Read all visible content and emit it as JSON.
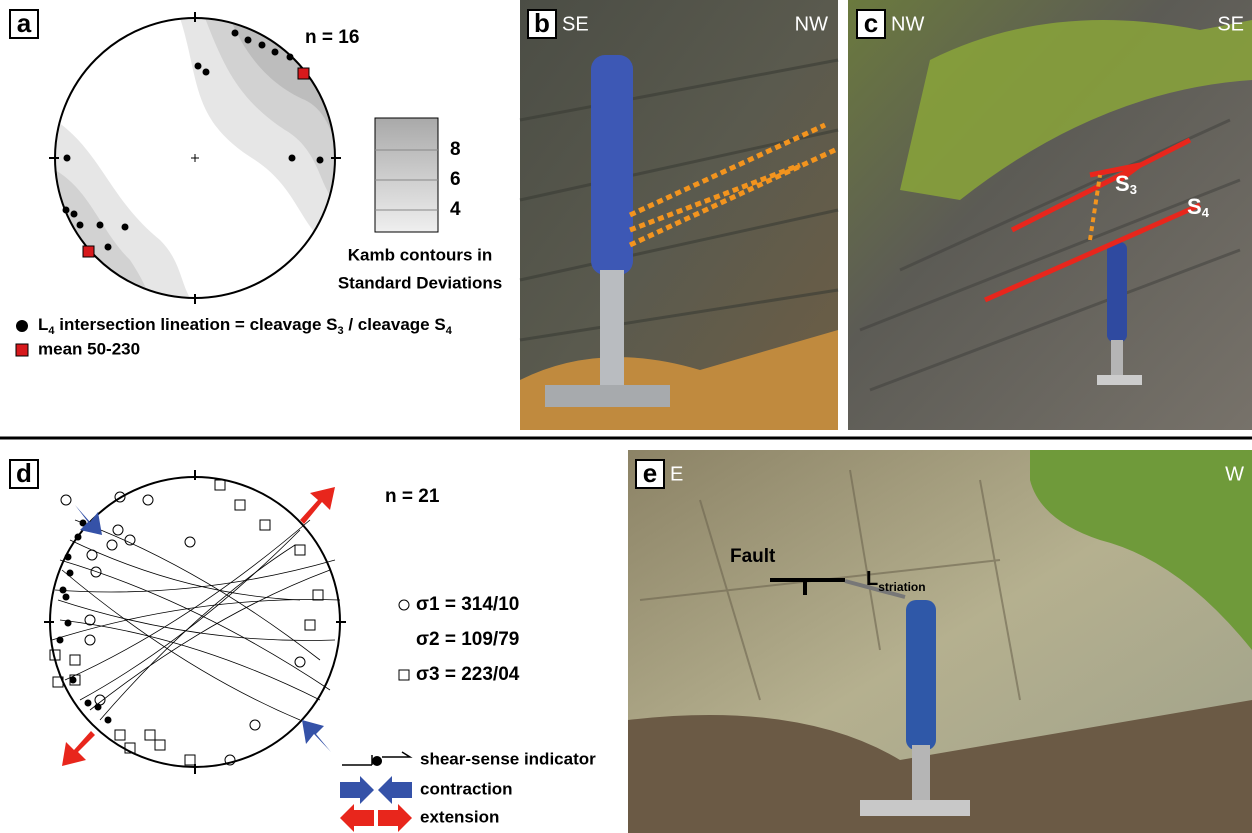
{
  "panel_a": {
    "label": "a",
    "n": "n = 16",
    "contour_labels": [
      8,
      6,
      4
    ],
    "contour_caption": [
      "Kamb contours in",
      "Standard Deviations"
    ],
    "legend_lineation": [
      "L",
      "4",
      " intersection lineation = cleavage S",
      "3",
      " / cleavage S",
      "4"
    ],
    "legend_mean": "mean 50-230"
  },
  "panel_b": {
    "label": "b",
    "left": "SE",
    "right": "NW"
  },
  "panel_c": {
    "label": "c",
    "left": "NW",
    "right": "SE",
    "s3": [
      "S",
      "3"
    ],
    "s4": [
      "S",
      "4"
    ]
  },
  "panel_d": {
    "label": "d",
    "n": "n = 21",
    "sigma1": "σ1 = 314/10",
    "sigma2": "σ2 = 109/79",
    "sigma3": "σ3 = 223/04",
    "legend": [
      "shear-sense indicator",
      "contraction",
      "extension"
    ]
  },
  "panel_e": {
    "label": "e",
    "left": "E",
    "right": "W",
    "fault": "Fault",
    "striation": [
      "L",
      "striation"
    ]
  }
}
